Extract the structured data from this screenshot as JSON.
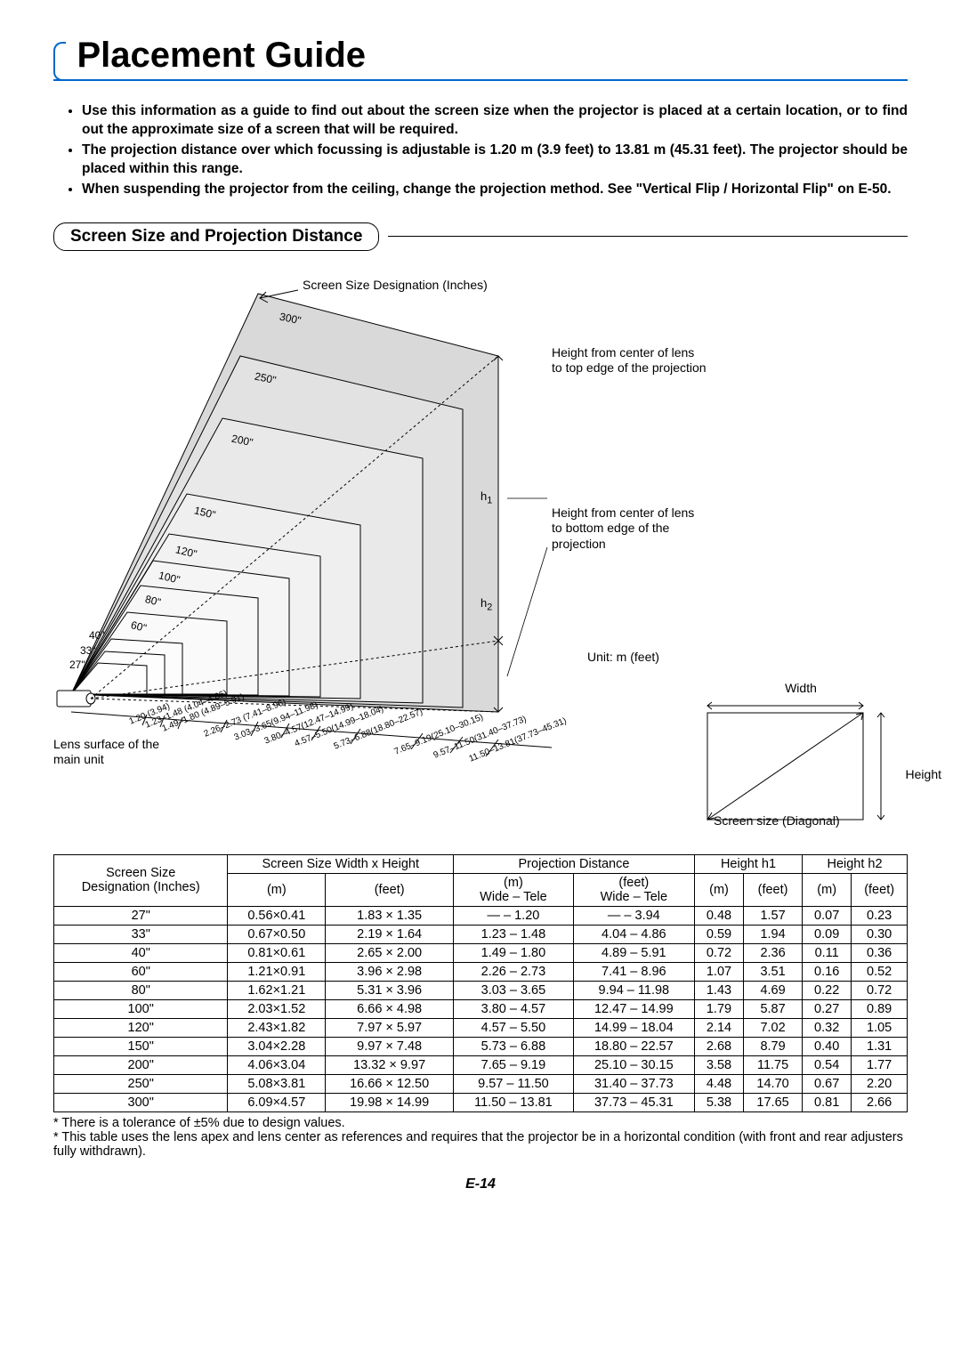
{
  "title": "Placement Guide",
  "bullets": [
    "Use this information as a guide to find out about the screen size when the projector is placed at a certain location, or to find out the approximate size of a screen that will be required.",
    "The projection distance over which focussing is adjustable is 1.20 m (3.9 feet) to 13.81 m (45.31 feet). The projector should be placed within this range.",
    "When suspending the projector from the ceiling, change the projection method. See \"Vertical Flip / Horizontal Flip\" on E-50."
  ],
  "section_head": "Screen Size and Projection Distance",
  "diagram": {
    "caption_top": "Screen Size Designation (Inches)",
    "h1_label": "Height from center of lens to top edge of the projection",
    "h2_label": "Height from center of lens to bottom edge of the projection",
    "unit_label": "Unit: m (feet)",
    "lens_label": "Lens surface of the main unit",
    "width_label": "Width",
    "height_label": "Height",
    "diag_label": "Screen size (Diagonal)",
    "h1": "h1",
    "h2": "h2",
    "sizes": [
      "300\"",
      "250\"",
      "200\"",
      "150\"",
      "120\"",
      "100\"",
      "80\"",
      "60\"",
      "40\"",
      "33\"",
      "27\""
    ],
    "dist_ticks": [
      "1.20 (3.94)",
      "1.23–1.48 (4.04–4.86)",
      "1.49–1.80 (4.89–5.91)",
      "2.26–2.73 (7.41–8.96)",
      "3.03–3.65(9.94–11.98)",
      "3.80–4.57(12.47–14.99)",
      "4.57–5.50(14.99–18.04)",
      "5.73–6.88(18.80–22.57)",
      "7.65–9.19(25.10–30.15)",
      "9.57–11.50(31.40–37.73)",
      "11.50–13.81(37.73–45.31)"
    ],
    "stroke": "#000000",
    "fill": "#d9d9d9"
  },
  "table": {
    "headers": {
      "c1a": "Screen Size",
      "c1b": "Designation (Inches)",
      "c2": "Screen Size  Width x Height",
      "c2a": "(m)",
      "c2b": "(feet)",
      "c3": "Projection Distance",
      "c3a": "(m)",
      "c3b": "(feet)",
      "wt": "Wide  –   Tele",
      "c4": "Height h1",
      "c4a": "(m)",
      "c4b": "(feet)",
      "c5": "Height h2",
      "c5a": "(m)",
      "c5b": "(feet)"
    },
    "rows": [
      [
        "27\"",
        "0.56×0.41",
        "1.83 ×  1.35",
        "—  –   1.20",
        "—  –    3.94",
        "0.48",
        "1.57",
        "0.07",
        "0.23"
      ],
      [
        "33\"",
        "0.67×0.50",
        "2.19 ×  1.64",
        "1.23  –   1.48",
        "4.04 –    4.86",
        "0.59",
        "1.94",
        "0.09",
        "0.30"
      ],
      [
        "40\"",
        "0.81×0.61",
        "2.65 ×  2.00",
        "1.49  –   1.80",
        "4.89 –    5.91",
        "0.72",
        "2.36",
        "0.11",
        "0.36"
      ],
      [
        "60\"",
        "1.21×0.91",
        "3.96 ×  2.98",
        "2.26  –   2.73",
        "7.41 –    8.96",
        "1.07",
        "3.51",
        "0.16",
        "0.52"
      ],
      [
        "80\"",
        "1.62×1.21",
        "5.31 ×  3.96",
        "3.03  –   3.65",
        "9.94  – 11.98",
        "1.43",
        "4.69",
        "0.22",
        "0.72"
      ],
      [
        "100\"",
        "2.03×1.52",
        "6.66 ×  4.98",
        "3.80  –   4.57",
        "12.47  – 14.99",
        "1.79",
        "5.87",
        "0.27",
        "0.89"
      ],
      [
        "120\"",
        "2.43×1.82",
        "7.97 ×  5.97",
        "4.57  –   5.50",
        "14.99  – 18.04",
        "2.14",
        "7.02",
        "0.32",
        "1.05"
      ],
      [
        "150\"",
        "3.04×2.28",
        "9.97 ×  7.48",
        "5.73  –   6.88",
        "18.80 – 22.57",
        "2.68",
        "8.79",
        "0.40",
        "1.31"
      ],
      [
        "200\"",
        "4.06×3.04",
        "13.32 ×  9.97",
        "7.65  –   9.19",
        "25.10  – 30.15",
        "3.58",
        "11.75",
        "0.54",
        "1.77"
      ],
      [
        "250\"",
        "5.08×3.81",
        "16.66 × 12.50",
        "9.57  – 11.50",
        "31.40  – 37.73",
        "4.48",
        "14.70",
        "0.67",
        "2.20"
      ],
      [
        "300\"",
        "6.09×4.57",
        "19.98 × 14.99",
        "11.50  – 13.81",
        "37.73  – 45.31",
        "5.38",
        "17.65",
        "0.81",
        "2.66"
      ]
    ]
  },
  "footnotes": [
    "* There is a tolerance of ±5% due to design values.",
    "* This table uses the lens apex and lens center as references and requires that the projector be in a horizontal condition (with front and rear adjusters fully withdrawn)."
  ],
  "page_num": "E-14"
}
